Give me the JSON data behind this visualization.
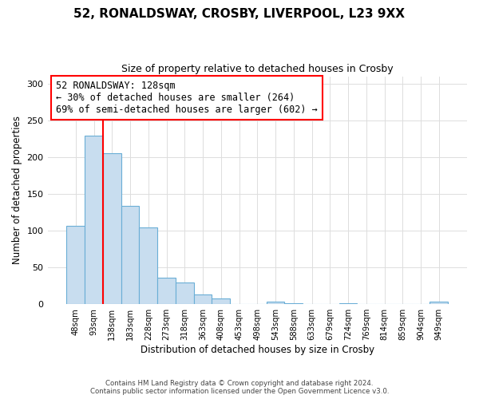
{
  "title": "52, RONALDSWAY, CROSBY, LIVERPOOL, L23 9XX",
  "subtitle": "Size of property relative to detached houses in Crosby",
  "bar_labels": [
    "48sqm",
    "93sqm",
    "138sqm",
    "183sqm",
    "228sqm",
    "273sqm",
    "318sqm",
    "363sqm",
    "408sqm",
    "453sqm",
    "498sqm",
    "543sqm",
    "588sqm",
    "633sqm",
    "679sqm",
    "724sqm",
    "769sqm",
    "814sqm",
    "859sqm",
    "904sqm",
    "949sqm"
  ],
  "bar_values": [
    107,
    229,
    205,
    134,
    104,
    36,
    30,
    13,
    8,
    0,
    0,
    3,
    1,
    0,
    0,
    1,
    0,
    0,
    0,
    0,
    3
  ],
  "bar_color": "#c8ddef",
  "bar_edge_color": "#6aaed6",
  "xlabel": "Distribution of detached houses by size in Crosby",
  "ylabel": "Number of detached properties",
  "ylim": [
    0,
    310
  ],
  "yticks": [
    0,
    50,
    100,
    150,
    200,
    250,
    300
  ],
  "red_line_index": 2,
  "annotation_title": "52 RONALDSWAY: 128sqm",
  "annotation_line1": "← 30% of detached houses are smaller (264)",
  "annotation_line2": "69% of semi-detached houses are larger (602) →",
  "footer_line1": "Contains HM Land Registry data © Crown copyright and database right 2024.",
  "footer_line2": "Contains public sector information licensed under the Open Government Licence v3.0.",
  "background_color": "#ffffff",
  "grid_color": "#dddddd"
}
